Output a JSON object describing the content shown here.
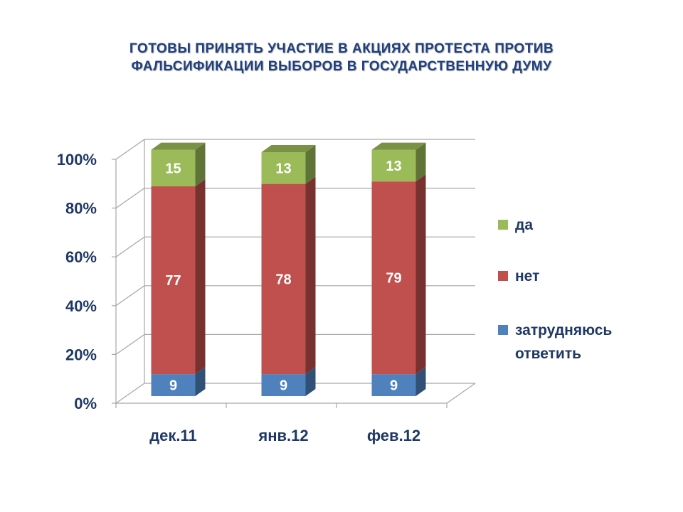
{
  "title": {
    "line1": "ГОТОВЫ ПРИНЯТЬ УЧАСТИЕ В АКЦИЯХ ПРОТЕСТА ПРОТИВ",
    "line2": "ФАЛЬСИФИКАЦИИ  ВЫБОРОВ В ГОСУДАРСТВЕННУЮ ДУМУ"
  },
  "chart_data": {
    "type": "bar",
    "stacked": true,
    "percent": true,
    "three_d": true,
    "title": "ГОТОВЫ ПРИНЯТЬ УЧАСТИЕ В АКЦИЯХ ПРОТЕСТА ПРОТИВ ФАЛЬСИФИКАЦИИ  ВЫБОРОВ В ГОСУДАРСТВЕННУЮ ДУМУ",
    "xlabel": "",
    "ylabel": "",
    "categories": [
      "дек.11",
      "янв.12",
      "фев.12"
    ],
    "series": [
      {
        "name": "затрудняюсь ответить",
        "values": [
          9,
          9,
          9
        ],
        "color": "#4f81bd"
      },
      {
        "name": "нет",
        "values": [
          77,
          78,
          79
        ],
        "color": "#c0504d"
      },
      {
        "name": "да",
        "values": [
          15,
          13,
          13
        ],
        "color": "#9bbb59"
      }
    ],
    "y_ticks": [
      "0%",
      "20%",
      "40%",
      "60%",
      "80%",
      "100%"
    ],
    "ylim": [
      0,
      100
    ],
    "grid": true,
    "legend_position": "right",
    "legend_order": [
      "да",
      "нет",
      "затрудняюсь ответить"
    ]
  },
  "colors": {
    "title": "#1f3f7f",
    "axis_text": "#1f3864",
    "grid": "#a6a6a6"
  }
}
